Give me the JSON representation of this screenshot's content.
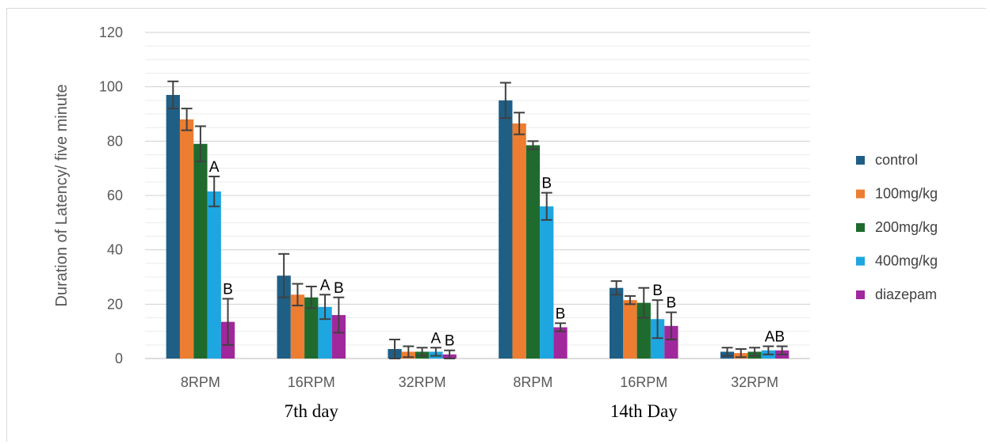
{
  "chart_data": {
    "type": "bar",
    "ylabel": "Duration of Latency/ five minute",
    "ylim": [
      0,
      120
    ],
    "yticks": [
      0,
      20,
      40,
      60,
      80,
      100,
      120
    ],
    "grid": true,
    "legend_position": "right",
    "categories": [
      "8RPM",
      "16RPM",
      "32RPM",
      "8RPM",
      "16RPM",
      "32RPM"
    ],
    "groups": [
      {
        "label": "7th day",
        "categories": [
          "8RPM",
          "16RPM",
          "32RPM"
        ]
      },
      {
        "label": "14th Day",
        "categories": [
          "8RPM",
          "16RPM",
          "32RPM"
        ]
      }
    ],
    "series": [
      {
        "name": "control",
        "color": "#1f5f86",
        "values": [
          97,
          30.5,
          3.5,
          95,
          26,
          2.5
        ],
        "errors": [
          5,
          8,
          3.5,
          6.5,
          2.5,
          1.5
        ]
      },
      {
        "name": "100mg/kg",
        "color": "#ed7d31",
        "values": [
          88,
          23.5,
          2.5,
          86.5,
          21.5,
          2
        ],
        "errors": [
          4,
          4,
          2,
          4,
          1.5,
          1.5
        ]
      },
      {
        "name": "200mg/kg",
        "color": "#1f6b2e",
        "values": [
          79,
          22.5,
          2.5,
          78.5,
          20.5,
          2.5
        ],
        "errors": [
          6.5,
          4,
          1.5,
          1.5,
          5.5,
          1.5
        ]
      },
      {
        "name": "400mg/kg",
        "color": "#1ea6e0",
        "values": [
          61.5,
          19,
          2.5,
          56,
          14.5,
          3
        ],
        "errors": [
          5.5,
          4.5,
          1.5,
          5,
          7,
          1.5
        ]
      },
      {
        "name": "diazepam",
        "color": "#a0289c",
        "values": [
          13.5,
          16,
          1.5,
          11.5,
          12,
          3
        ],
        "errors": [
          8.5,
          6.5,
          1.5,
          1.5,
          5,
          1.5
        ]
      }
    ],
    "annotations": [
      {
        "category_index": 0,
        "series": "400mg/kg",
        "text": "A"
      },
      {
        "category_index": 0,
        "series": "diazepam",
        "text": "B"
      },
      {
        "category_index": 1,
        "series": "400mg/kg",
        "text": "A"
      },
      {
        "category_index": 1,
        "series": "diazepam",
        "text": "B"
      },
      {
        "category_index": 2,
        "series": "400mg/kg",
        "text": "A"
      },
      {
        "category_index": 2,
        "series": "diazepam",
        "text": "B"
      },
      {
        "category_index": 3,
        "series": "400mg/kg",
        "text": "B"
      },
      {
        "category_index": 3,
        "series": "diazepam",
        "text": "B"
      },
      {
        "category_index": 4,
        "series": "400mg/kg",
        "text": "B"
      },
      {
        "category_index": 4,
        "series": "diazepam",
        "text": "B"
      },
      {
        "category_index": 5,
        "series": "400mg/kg",
        "text": "AB"
      }
    ]
  }
}
